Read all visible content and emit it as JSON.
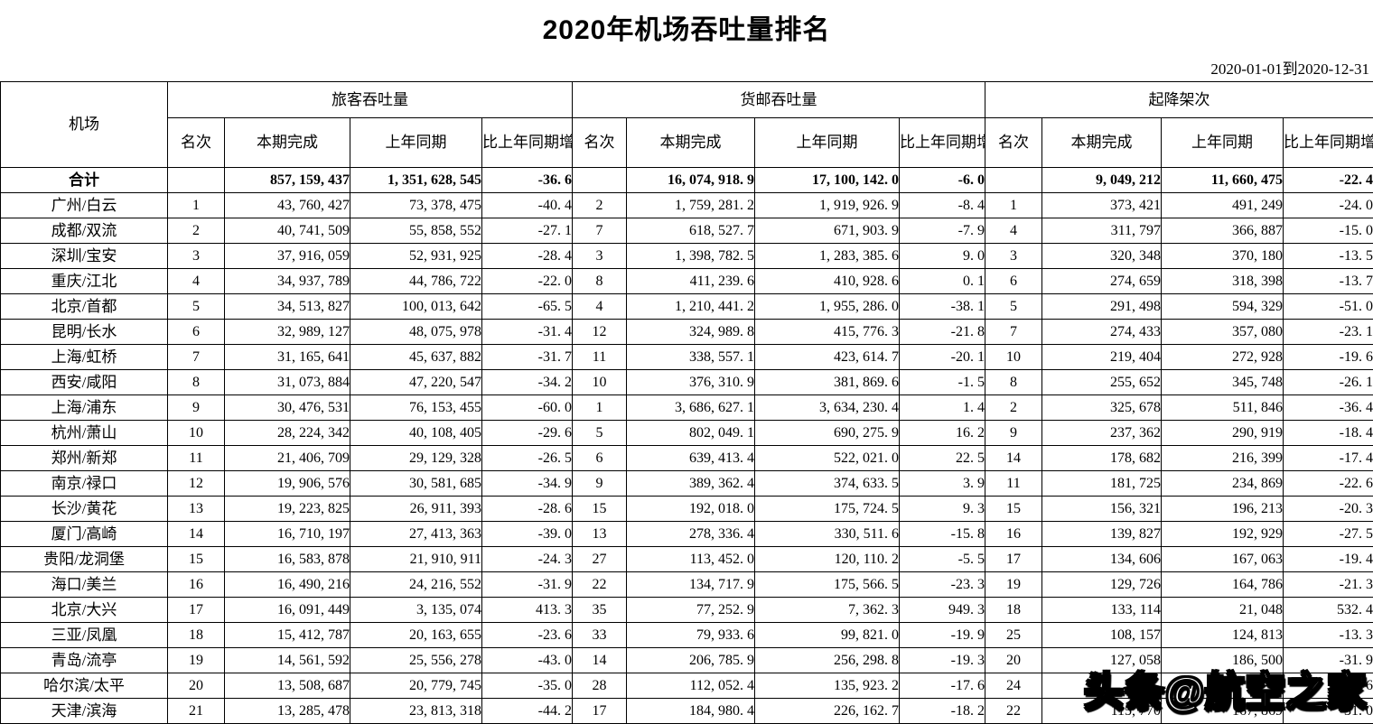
{
  "page": {
    "title": "2020年机场吞吐量排名",
    "date_range": "2020-01-01到2020-12-31",
    "watermark": "头条@航空之家"
  },
  "table": {
    "airport_header": "机场",
    "group_headers": {
      "passenger": "旅客吞吐量",
      "cargo": "货邮吞吐量",
      "movements": "起降架次"
    },
    "sub_headers": {
      "rank": "名次",
      "current": "本期完成",
      "previous": "上年同期",
      "change": "比上年同期增减%"
    },
    "rows": [
      {
        "airport": "合计",
        "is_total": true,
        "passenger": [
          "",
          "857, 159, 437",
          "1, 351, 628, 545",
          "-36. 6"
        ],
        "cargo": [
          "",
          "16, 074, 918. 9",
          "17, 100, 142. 0",
          "-6. 0"
        ],
        "movements": [
          "",
          "9, 049, 212",
          "11, 660, 475",
          "-22. 4"
        ]
      },
      {
        "airport": "广州/白云",
        "passenger": [
          "1",
          "43, 760, 427",
          "73, 378, 475",
          "-40. 4"
        ],
        "cargo": [
          "2",
          "1, 759, 281. 2",
          "1, 919, 926. 9",
          "-8. 4"
        ],
        "movements": [
          "1",
          "373, 421",
          "491, 249",
          "-24. 0"
        ]
      },
      {
        "airport": "成都/双流",
        "passenger": [
          "2",
          "40, 741, 509",
          "55, 858, 552",
          "-27. 1"
        ],
        "cargo": [
          "7",
          "618, 527. 7",
          "671, 903. 9",
          "-7. 9"
        ],
        "movements": [
          "4",
          "311, 797",
          "366, 887",
          "-15. 0"
        ]
      },
      {
        "airport": "深圳/宝安",
        "passenger": [
          "3",
          "37, 916, 059",
          "52, 931, 925",
          "-28. 4"
        ],
        "cargo": [
          "3",
          "1, 398, 782. 5",
          "1, 283, 385. 6",
          "9. 0"
        ],
        "movements": [
          "3",
          "320, 348",
          "370, 180",
          "-13. 5"
        ]
      },
      {
        "airport": "重庆/江北",
        "passenger": [
          "4",
          "34, 937, 789",
          "44, 786, 722",
          "-22. 0"
        ],
        "cargo": [
          "8",
          "411, 239. 6",
          "410, 928. 6",
          "0. 1"
        ],
        "movements": [
          "6",
          "274, 659",
          "318, 398",
          "-13. 7"
        ]
      },
      {
        "airport": "北京/首都",
        "passenger": [
          "5",
          "34, 513, 827",
          "100, 013, 642",
          "-65. 5"
        ],
        "cargo": [
          "4",
          "1, 210, 441. 2",
          "1, 955, 286. 0",
          "-38. 1"
        ],
        "movements": [
          "5",
          "291, 498",
          "594, 329",
          "-51. 0"
        ]
      },
      {
        "airport": "昆明/长水",
        "passenger": [
          "6",
          "32, 989, 127",
          "48, 075, 978",
          "-31. 4"
        ],
        "cargo": [
          "12",
          "324, 989. 8",
          "415, 776. 3",
          "-21. 8"
        ],
        "movements": [
          "7",
          "274, 433",
          "357, 080",
          "-23. 1"
        ]
      },
      {
        "airport": "上海/虹桥",
        "passenger": [
          "7",
          "31, 165, 641",
          "45, 637, 882",
          "-31. 7"
        ],
        "cargo": [
          "11",
          "338, 557. 1",
          "423, 614. 7",
          "-20. 1"
        ],
        "movements": [
          "10",
          "219, 404",
          "272, 928",
          "-19. 6"
        ]
      },
      {
        "airport": "西安/咸阳",
        "passenger": [
          "8",
          "31, 073, 884",
          "47, 220, 547",
          "-34. 2"
        ],
        "cargo": [
          "10",
          "376, 310. 9",
          "381, 869. 6",
          "-1. 5"
        ],
        "movements": [
          "8",
          "255, 652",
          "345, 748",
          "-26. 1"
        ]
      },
      {
        "airport": "上海/浦东",
        "passenger": [
          "9",
          "30, 476, 531",
          "76, 153, 455",
          "-60. 0"
        ],
        "cargo": [
          "1",
          "3, 686, 627. 1",
          "3, 634, 230. 4",
          "1. 4"
        ],
        "movements": [
          "2",
          "325, 678",
          "511, 846",
          "-36. 4"
        ]
      },
      {
        "airport": "杭州/萧山",
        "passenger": [
          "10",
          "28, 224, 342",
          "40, 108, 405",
          "-29. 6"
        ],
        "cargo": [
          "5",
          "802, 049. 1",
          "690, 275. 9",
          "16. 2"
        ],
        "movements": [
          "9",
          "237, 362",
          "290, 919",
          "-18. 4"
        ]
      },
      {
        "airport": "郑州/新郑",
        "passenger": [
          "11",
          "21, 406, 709",
          "29, 129, 328",
          "-26. 5"
        ],
        "cargo": [
          "6",
          "639, 413. 4",
          "522, 021. 0",
          "22. 5"
        ],
        "movements": [
          "14",
          "178, 682",
          "216, 399",
          "-17. 4"
        ]
      },
      {
        "airport": "南京/禄口",
        "passenger": [
          "12",
          "19, 906, 576",
          "30, 581, 685",
          "-34. 9"
        ],
        "cargo": [
          "9",
          "389, 362. 4",
          "374, 633. 5",
          "3. 9"
        ],
        "movements": [
          "11",
          "181, 725",
          "234, 869",
          "-22. 6"
        ]
      },
      {
        "airport": "长沙/黄花",
        "passenger": [
          "13",
          "19, 223, 825",
          "26, 911, 393",
          "-28. 6"
        ],
        "cargo": [
          "15",
          "192, 018. 0",
          "175, 724. 5",
          "9. 3"
        ],
        "movements": [
          "15",
          "156, 321",
          "196, 213",
          "-20. 3"
        ]
      },
      {
        "airport": "厦门/高崎",
        "passenger": [
          "14",
          "16, 710, 197",
          "27, 413, 363",
          "-39. 0"
        ],
        "cargo": [
          "13",
          "278, 336. 4",
          "330, 511. 6",
          "-15. 8"
        ],
        "movements": [
          "16",
          "139, 827",
          "192, 929",
          "-27. 5"
        ]
      },
      {
        "airport": "贵阳/龙洞堡",
        "passenger": [
          "15",
          "16, 583, 878",
          "21, 910, 911",
          "-24. 3"
        ],
        "cargo": [
          "27",
          "113, 452. 0",
          "120, 110. 2",
          "-5. 5"
        ],
        "movements": [
          "17",
          "134, 606",
          "167, 063",
          "-19. 4"
        ]
      },
      {
        "airport": "海口/美兰",
        "passenger": [
          "16",
          "16, 490, 216",
          "24, 216, 552",
          "-31. 9"
        ],
        "cargo": [
          "22",
          "134, 717. 9",
          "175, 566. 5",
          "-23. 3"
        ],
        "movements": [
          "19",
          "129, 726",
          "164, 786",
          "-21. 3"
        ]
      },
      {
        "airport": "北京/大兴",
        "passenger": [
          "17",
          "16, 091, 449",
          "3, 135, 074",
          "413. 3"
        ],
        "cargo": [
          "35",
          "77, 252. 9",
          "7, 362. 3",
          "949. 3"
        ],
        "movements": [
          "18",
          "133, 114",
          "21, 048",
          "532. 4"
        ]
      },
      {
        "airport": "三亚/凤凰",
        "passenger": [
          "18",
          "15, 412, 787",
          "20, 163, 655",
          "-23. 6"
        ],
        "cargo": [
          "33",
          "79, 933. 6",
          "99, 821. 0",
          "-19. 9"
        ],
        "movements": [
          "25",
          "108, 157",
          "124, 813",
          "-13. 3"
        ]
      },
      {
        "airport": "青岛/流亭",
        "passenger": [
          "19",
          "14, 561, 592",
          "25, 556, 278",
          "-43. 0"
        ],
        "cargo": [
          "14",
          "206, 785. 9",
          "256, 298. 8",
          "-19. 3"
        ],
        "movements": [
          "20",
          "127, 058",
          "186, 500",
          "-31. 9"
        ]
      },
      {
        "airport": "哈尔滨/太平",
        "passenger": [
          "20",
          "13, 508, 687",
          "20, 779, 745",
          "-35. 0"
        ],
        "cargo": [
          "28",
          "112, 052. 4",
          "135, 923. 2",
          "-17. 6"
        ],
        "movements": [
          "24",
          "",
          "",
          ". 6"
        ]
      },
      {
        "airport": "天津/滨海",
        "passenger": [
          "21",
          "13, 285, 478",
          "23, 813, 318",
          "-44. 2"
        ],
        "cargo": [
          "17",
          "184, 980. 4",
          "226, 162. 7",
          "-18. 2"
        ],
        "movements": [
          "22",
          "115, 770",
          "167, 869",
          "-31. 0"
        ]
      }
    ]
  }
}
